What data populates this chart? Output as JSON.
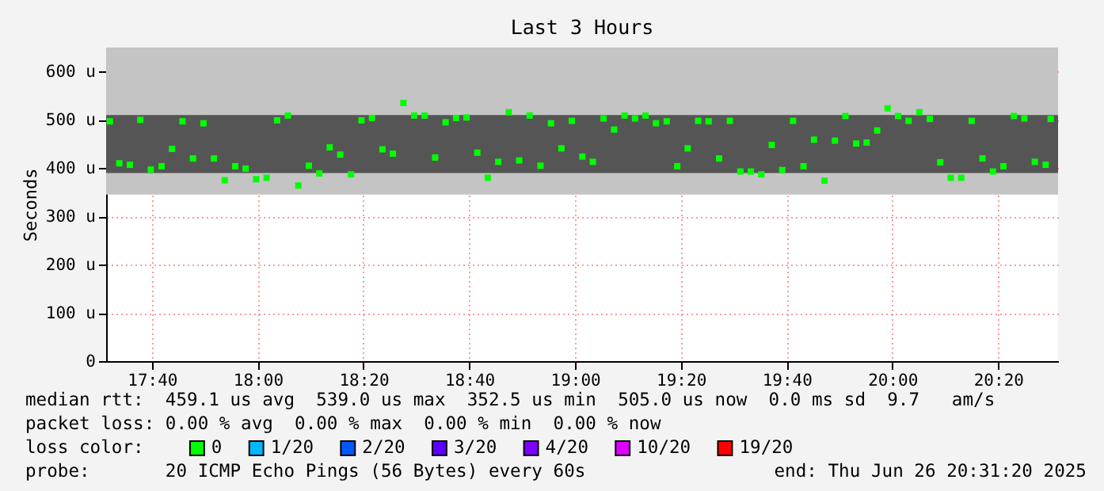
{
  "chart_data": {
    "type": "scatter",
    "title": "Last 3 Hours",
    "ylabel": "Seconds",
    "legend_title": "loss color:",
    "legend": "bottom",
    "marker": "square",
    "grid": true,
    "xlim": [
      17.5222,
      20.5222
    ],
    "ylim": [
      0,
      650
    ],
    "xticks": [
      {
        "value": 17.6667,
        "label": "17:40"
      },
      {
        "value": 18,
        "label": "18:00"
      },
      {
        "value": 18.3333,
        "label": "18:20"
      },
      {
        "value": 18.6667,
        "label": "18:40"
      },
      {
        "value": 19,
        "label": "19:00"
      },
      {
        "value": 19.3333,
        "label": "19:20"
      },
      {
        "value": 19.6667,
        "label": "19:40"
      },
      {
        "value": 20,
        "label": "20:00"
      },
      {
        "value": 20.3333,
        "label": "20:20"
      }
    ],
    "yticks": [
      0,
      {
        "value": 100,
        "label": "100 u"
      },
      {
        "value": 200,
        "label": "200 u"
      },
      {
        "value": 300,
        "label": "300 u"
      },
      {
        "value": 400,
        "label": "400 u"
      },
      {
        "value": 500,
        "label": "500 u"
      },
      {
        "value": 600,
        "label": "600 u"
      }
    ],
    "bands": [
      {
        "axis": "y",
        "from": 345,
        "to": 650,
        "color": "#c4c4c4"
      },
      {
        "axis": "y",
        "from": 390,
        "to": 510,
        "color": "#555555"
      }
    ],
    "x": [
      17.5339,
      17.5637,
      17.597,
      17.63,
      17.663,
      17.697,
      17.73,
      17.763,
      17.796,
      17.829,
      17.862,
      17.896,
      17.929,
      17.962,
      17.995,
      18.028,
      18.061,
      18.095,
      18.128,
      18.161,
      18.194,
      18.227,
      18.26,
      18.294,
      18.327,
      18.36,
      18.393,
      18.426,
      18.459,
      18.493,
      18.526,
      18.559,
      18.592,
      18.625,
      18.658,
      18.692,
      18.725,
      18.758,
      18.791,
      18.824,
      18.857,
      18.891,
      18.924,
      18.957,
      18.99,
      19.023,
      19.056,
      19.09,
      19.123,
      19.156,
      19.189,
      19.222,
      19.255,
      19.289,
      19.322,
      19.355,
      19.388,
      19.421,
      19.454,
      19.488,
      19.521,
      19.554,
      19.587,
      19.62,
      19.653,
      19.687,
      19.72,
      19.753,
      19.786,
      19.819,
      19.852,
      19.886,
      19.919,
      19.952,
      19.985,
      20.018,
      20.051,
      20.085,
      20.118,
      20.151,
      20.184,
      20.217,
      20.25,
      20.284,
      20.317,
      20.35,
      20.383,
      20.416,
      20.449,
      20.483,
      20.499
    ],
    "series": [
      {
        "name": "0",
        "color": "#00ff00",
        "values": [
          497,
          410,
          407,
          500,
          397,
          404,
          440,
          497,
          420,
          493,
          420,
          375,
          404,
          399,
          377,
          380,
          499,
          509,
          364,
          405,
          389,
          443,
          428,
          387,
          499,
          504,
          439,
          430,
          535,
          509,
          509,
          422,
          495,
          504,
          505,
          432,
          380,
          413,
          516,
          416,
          509,
          405,
          493,
          441,
          498,
          424,
          413,
          503,
          480,
          509,
          503,
          509,
          493,
          497,
          404,
          441,
          498,
          497,
          420,
          498,
          393,
          393,
          387,
          448,
          396,
          498,
          404,
          459,
          374,
          457,
          508,
          451,
          453,
          478,
          524,
          508,
          498,
          516,
          502,
          412,
          380,
          380,
          498,
          420,
          393,
          404,
          508,
          503,
          413,
          407,
          502
        ]
      },
      {
        "name": "1/20",
        "color": "#00b8ff",
        "values": [
          null,
          null,
          null,
          null,
          null,
          null,
          null,
          null,
          null,
          null,
          null,
          null,
          null,
          null,
          null,
          null,
          null,
          null,
          null,
          null,
          null,
          null,
          null,
          null,
          null,
          null,
          null,
          null,
          null,
          null,
          null,
          null,
          null,
          null,
          null,
          null,
          null,
          null,
          null,
          null,
          null,
          null,
          null,
          null,
          null,
          null,
          null,
          null,
          null,
          null,
          null,
          null,
          null,
          null,
          null,
          null,
          null,
          null,
          null,
          null,
          null,
          null,
          null,
          null,
          null,
          null,
          null,
          null,
          null,
          null,
          null,
          null,
          null,
          null,
          null,
          null,
          null,
          null,
          null,
          null,
          null,
          null,
          null,
          null,
          null,
          null,
          null,
          null,
          null,
          null,
          null
        ]
      },
      {
        "name": "2/20",
        "color": "#0059ff",
        "values": [
          null,
          null,
          null,
          null,
          null,
          null,
          null,
          null,
          null,
          null,
          null,
          null,
          null,
          null,
          null,
          null,
          null,
          null,
          null,
          null,
          null,
          null,
          null,
          null,
          null,
          null,
          null,
          null,
          null,
          null,
          null,
          null,
          null,
          null,
          null,
          null,
          null,
          null,
          null,
          null,
          null,
          null,
          null,
          null,
          null,
          null,
          null,
          null,
          null,
          null,
          null,
          null,
          null,
          null,
          null,
          null,
          null,
          null,
          null,
          null,
          null,
          null,
          null,
          null,
          null,
          null,
          null,
          null,
          null,
          null,
          null,
          null,
          null,
          null,
          null,
          null,
          null,
          null,
          null,
          null,
          null,
          null,
          null,
          null,
          null,
          null,
          null,
          null,
          null,
          null,
          null
        ]
      },
      {
        "name": "3/20",
        "color": "#5e00ff",
        "values": [
          null,
          null,
          null,
          null,
          null,
          null,
          null,
          null,
          null,
          null,
          null,
          null,
          null,
          null,
          null,
          null,
          null,
          null,
          null,
          null,
          null,
          null,
          null,
          null,
          null,
          null,
          null,
          null,
          null,
          null,
          null,
          null,
          null,
          null,
          null,
          null,
          null,
          null,
          null,
          null,
          null,
          null,
          null,
          null,
          null,
          null,
          null,
          null,
          null,
          null,
          null,
          null,
          null,
          null,
          null,
          null,
          null,
          null,
          null,
          null,
          null,
          null,
          null,
          null,
          null,
          null,
          null,
          null,
          null,
          null,
          null,
          null,
          null,
          null,
          null,
          null,
          null,
          null,
          null,
          null,
          null,
          null,
          null,
          null,
          null,
          null,
          null,
          null,
          null,
          null,
          null
        ]
      },
      {
        "name": "4/20",
        "color": "#7e00ff",
        "values": [
          null,
          null,
          null,
          null,
          null,
          null,
          null,
          null,
          null,
          null,
          null,
          null,
          null,
          null,
          null,
          null,
          null,
          null,
          null,
          null,
          null,
          null,
          null,
          null,
          null,
          null,
          null,
          null,
          null,
          null,
          null,
          null,
          null,
          null,
          null,
          null,
          null,
          null,
          null,
          null,
          null,
          null,
          null,
          null,
          null,
          null,
          null,
          null,
          null,
          null,
          null,
          null,
          null,
          null,
          null,
          null,
          null,
          null,
          null,
          null,
          null,
          null,
          null,
          null,
          null,
          null,
          null,
          null,
          null,
          null,
          null,
          null,
          null,
          null,
          null,
          null,
          null,
          null,
          null,
          null,
          null,
          null,
          null,
          null,
          null,
          null,
          null,
          null,
          null,
          null,
          null
        ]
      },
      {
        "name": "10/20",
        "color": "#dd00ff",
        "values": [
          null,
          null,
          null,
          null,
          null,
          null,
          null,
          null,
          null,
          null,
          null,
          null,
          null,
          null,
          null,
          null,
          null,
          null,
          null,
          null,
          null,
          null,
          null,
          null,
          null,
          null,
          null,
          null,
          null,
          null,
          null,
          null,
          null,
          null,
          null,
          null,
          null,
          null,
          null,
          null,
          null,
          null,
          null,
          null,
          null,
          null,
          null,
          null,
          null,
          null,
          null,
          null,
          null,
          null,
          null,
          null,
          null,
          null,
          null,
          null,
          null,
          null,
          null,
          null,
          null,
          null,
          null,
          null,
          null,
          null,
          null,
          null,
          null,
          null,
          null,
          null,
          null,
          null,
          null,
          null,
          null,
          null,
          null,
          null,
          null,
          null,
          null,
          null,
          null,
          null,
          null
        ]
      },
      {
        "name": "19/20",
        "color": "#ff0000",
        "values": [
          null,
          null,
          null,
          null,
          null,
          null,
          null,
          null,
          null,
          null,
          null,
          null,
          null,
          null,
          null,
          null,
          null,
          null,
          null,
          null,
          null,
          null,
          null,
          null,
          null,
          null,
          null,
          null,
          null,
          null,
          null,
          null,
          null,
          null,
          null,
          null,
          null,
          null,
          null,
          null,
          null,
          null,
          null,
          null,
          null,
          null,
          null,
          null,
          null,
          null,
          null,
          null,
          null,
          null,
          null,
          null,
          null,
          null,
          null,
          null,
          null,
          null,
          null,
          null,
          null,
          null,
          null,
          null,
          null,
          null,
          null,
          null,
          null,
          null,
          null,
          null,
          null,
          null,
          null,
          null,
          null,
          null,
          null,
          null,
          null,
          null,
          null,
          null,
          null,
          null,
          null
        ]
      }
    ],
    "annotations": [
      "median rtt:  459.1 us avg  539.0 us max  352.5 us min  505.0 us now  0.0 ms sd  9.7   am/s",
      "packet loss: 0.00 % avg  0.00 % max  0.00 % min  0.00 % now",
      "probe:       20 ICMP Echo Pings (56 Bytes) every 60s",
      "end: Thu Jun 26 20:31:20 2025"
    ]
  }
}
